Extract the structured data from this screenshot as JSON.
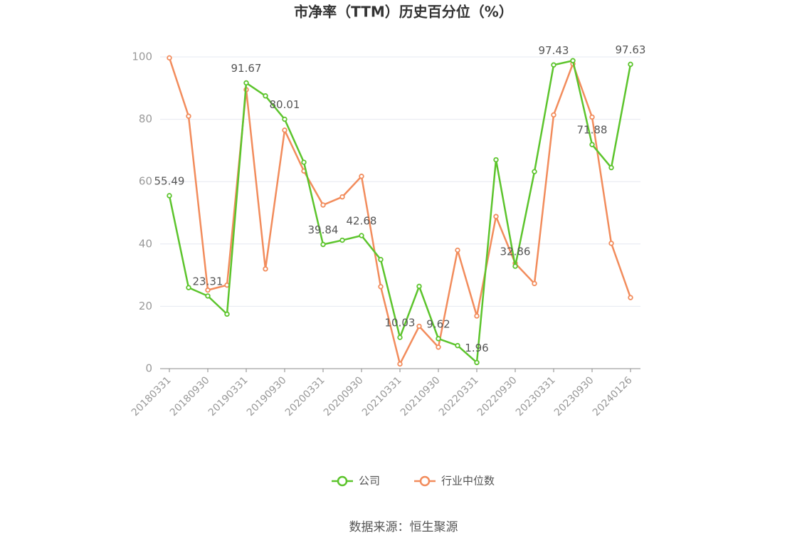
{
  "chart_data": {
    "type": "line",
    "title": "市净率（TTM）历史百分位（%）",
    "source": "数据来源：恒生聚源",
    "categories": [
      "20180331",
      null,
      "20180930",
      null,
      "20190331",
      null,
      "20190930",
      null,
      "20200331",
      null,
      "20200930",
      null,
      "20210331",
      null,
      "20210930",
      null,
      "20220331",
      null,
      "20220930",
      null,
      "20230331",
      null,
      "20230930",
      null,
      "20240126"
    ],
    "series": [
      {
        "name": "公司",
        "color": "#5cc42c",
        "values": [
          55.49,
          26,
          23.31,
          17.5,
          91.67,
          87.5,
          80.01,
          66.2,
          39.84,
          41.2,
          42.68,
          35,
          10.03,
          26.4,
          9.62,
          7.4,
          1.96,
          67,
          32.86,
          63.2,
          97.43,
          98.8,
          71.88,
          64.5,
          97.63
        ],
        "value_labels": [
          "55.49",
          null,
          "23.31",
          null,
          "91.67",
          null,
          "80.01",
          null,
          "39.84",
          null,
          "42.68",
          null,
          "10.03",
          null,
          "9.62",
          null,
          "1.96",
          null,
          "32.86",
          null,
          "97.43",
          null,
          "71.88",
          null,
          "97.63"
        ]
      },
      {
        "name": "行业中位数",
        "color": "#f28c5c",
        "values": [
          99.7,
          81,
          25.2,
          26.8,
          89.5,
          32,
          76.5,
          63.4,
          52.5,
          55.1,
          61.7,
          26.3,
          1.5,
          13.6,
          6.9,
          38,
          16.9,
          48.8,
          33.8,
          27.3,
          81.4,
          97.8,
          80.7,
          40.2,
          22.8
        ]
      }
    ],
    "ylim": [
      0,
      100
    ],
    "yticks": [
      0,
      20,
      40,
      60,
      80,
      100
    ],
    "grid": true
  }
}
